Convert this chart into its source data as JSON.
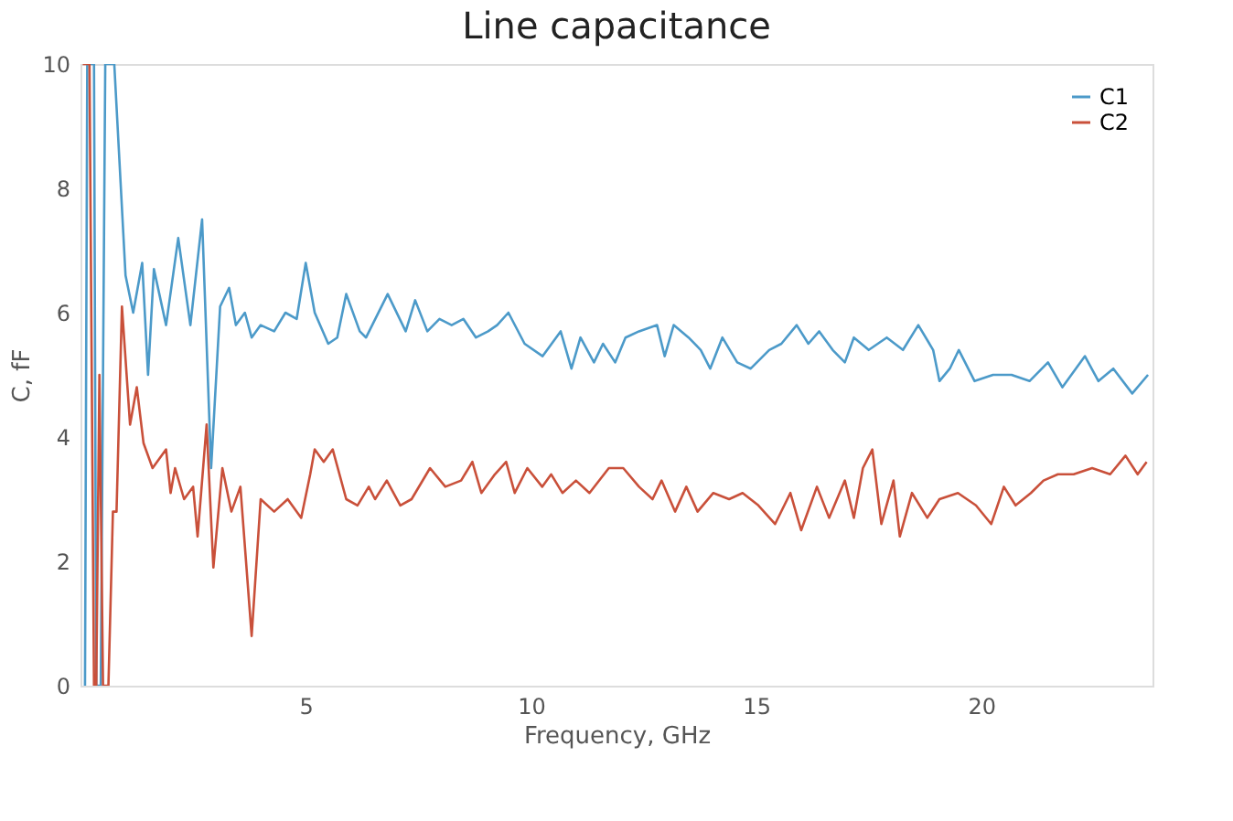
{
  "chart_data": {
    "type": "line",
    "title": "Line capacitance",
    "xlabel": "Frequency, GHz",
    "ylabel": "C, fF",
    "xlim": [
      0,
      23.8
    ],
    "ylim": [
      0,
      10
    ],
    "xticks": [
      5,
      10,
      15,
      20
    ],
    "yticks": [
      0,
      2,
      4,
      6,
      8,
      10
    ],
    "grid": false,
    "legend": "top right",
    "line_style": "solid",
    "marker": "none",
    "series": [
      {
        "name": "C1",
        "color": "#4c9ac9",
        "x": [
          0.1,
          0.15,
          0.3,
          0.35,
          0.45,
          0.55,
          0.75,
          1.0,
          1.17,
          1.37,
          1.5,
          1.63,
          1.9,
          2.17,
          2.44,
          2.7,
          2.9,
          3.1,
          3.3,
          3.45,
          3.65,
          3.8,
          4.0,
          4.3,
          4.55,
          4.8,
          5.0,
          5.2,
          5.5,
          5.7,
          5.9,
          6.2,
          6.34,
          6.82,
          7.22,
          7.43,
          7.7,
          7.97,
          8.24,
          8.5,
          8.78,
          9.05,
          9.25,
          9.5,
          9.86,
          10.26,
          10.66,
          10.9,
          11.1,
          11.4,
          11.6,
          11.87,
          12.1,
          12.4,
          12.8,
          12.97,
          13.17,
          13.5,
          13.77,
          13.98,
          14.25,
          14.58,
          14.88,
          15.29,
          15.56,
          15.9,
          16.16,
          16.4,
          16.7,
          16.97,
          17.17,
          17.5,
          17.9,
          18.26,
          18.6,
          18.93,
          19.07,
          19.3,
          19.5,
          19.85,
          20.26,
          20.67,
          21.07,
          21.48,
          21.8,
          22.3,
          22.6,
          22.93,
          23.35,
          23.7
        ],
        "values": [
          0,
          10,
          10,
          0,
          0,
          10,
          10,
          6.6,
          6.0,
          6.8,
          5.0,
          6.7,
          5.8,
          7.2,
          5.8,
          7.5,
          3.5,
          6.1,
          6.4,
          5.8,
          6.0,
          5.6,
          5.8,
          5.7,
          6.0,
          5.9,
          6.8,
          6.0,
          5.5,
          5.6,
          6.3,
          5.7,
          5.6,
          6.3,
          5.7,
          6.2,
          5.7,
          5.9,
          5.8,
          5.9,
          5.6,
          5.7,
          5.8,
          6.0,
          5.5,
          5.3,
          5.7,
          5.1,
          5.6,
          5.2,
          5.5,
          5.2,
          5.6,
          5.7,
          5.8,
          5.3,
          5.8,
          5.6,
          5.4,
          5.1,
          5.6,
          5.2,
          5.1,
          5.4,
          5.5,
          5.8,
          5.5,
          5.7,
          5.4,
          5.2,
          5.6,
          5.4,
          5.6,
          5.4,
          5.8,
          5.4,
          4.9,
          5.1,
          5.4,
          4.9,
          5.0,
          5.0,
          4.9,
          5.2,
          4.8,
          5.3,
          4.9,
          5.1,
          4.7,
          5.0
        ]
      },
      {
        "name": "C2",
        "color": "#c9503a",
        "x": [
          0.05,
          0.2,
          0.3,
          0.35,
          0.42,
          0.5,
          0.62,
          0.72,
          0.8,
          0.92,
          1.1,
          1.25,
          1.4,
          1.6,
          1.9,
          2.0,
          2.1,
          2.3,
          2.5,
          2.6,
          2.8,
          2.95,
          3.15,
          3.35,
          3.55,
          3.8,
          4.0,
          4.3,
          4.6,
          4.9,
          5.1,
          5.2,
          5.4,
          5.6,
          5.9,
          6.15,
          6.4,
          6.54,
          6.8,
          7.1,
          7.35,
          7.76,
          8.1,
          8.45,
          8.7,
          8.9,
          9.2,
          9.45,
          9.64,
          9.92,
          10.25,
          10.45,
          10.7,
          11.0,
          11.3,
          11.73,
          12.05,
          12.4,
          12.7,
          12.9,
          13.2,
          13.45,
          13.7,
          14.05,
          14.4,
          14.7,
          15.05,
          15.42,
          15.76,
          16.0,
          16.35,
          16.62,
          16.97,
          17.17,
          17.37,
          17.58,
          17.78,
          18.05,
          18.19,
          18.46,
          18.8,
          19.07,
          19.48,
          19.88,
          20.22,
          20.5,
          20.76,
          21.1,
          21.38,
          21.7,
          22.05,
          22.46,
          22.86,
          23.2,
          23.47,
          23.67
        ],
        "values": [
          10,
          10,
          0,
          0,
          5,
          0,
          0,
          2.8,
          2.8,
          6.1,
          4.2,
          4.8,
          3.9,
          3.5,
          3.8,
          3.1,
          3.5,
          3.0,
          3.2,
          2.4,
          4.2,
          1.9,
          3.5,
          2.8,
          3.2,
          0.8,
          3.0,
          2.8,
          3.0,
          2.7,
          3.4,
          3.8,
          3.6,
          3.8,
          3.0,
          2.9,
          3.2,
          3.0,
          3.3,
          2.9,
          3.0,
          3.5,
          3.2,
          3.3,
          3.6,
          3.1,
          3.4,
          3.6,
          3.1,
          3.5,
          3.2,
          3.4,
          3.1,
          3.3,
          3.1,
          3.5,
          3.5,
          3.2,
          3.0,
          3.3,
          2.8,
          3.2,
          2.8,
          3.1,
          3.0,
          3.1,
          2.9,
          2.6,
          3.1,
          2.5,
          3.2,
          2.7,
          3.3,
          2.7,
          3.5,
          3.8,
          2.6,
          3.3,
          2.4,
          3.1,
          2.7,
          3.0,
          3.1,
          2.9,
          2.6,
          3.2,
          2.9,
          3.1,
          3.3,
          3.4,
          3.4,
          3.5,
          3.4,
          3.7,
          3.4,
          3.6
        ]
      }
    ]
  }
}
